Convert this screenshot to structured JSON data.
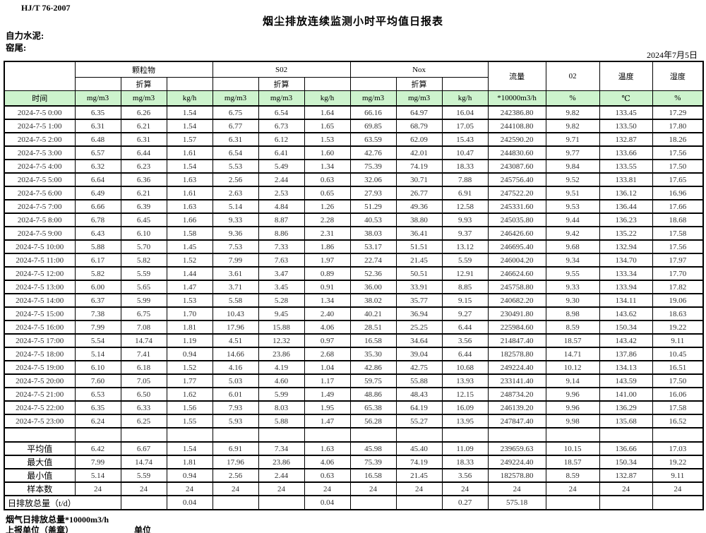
{
  "meta": {
    "standard": "HJ/T 76-2007",
    "title": "烟尘排放连续监测小时平均值日报表",
    "company": "自力水泥:",
    "site": "窑尾:",
    "date": "2024年7月5日"
  },
  "table": {
    "groups": [
      "颗粒物",
      "S02",
      "Nox"
    ],
    "converted_label": "折算",
    "flow_label": "流量",
    "o2_label": "02",
    "temp_label": "温度",
    "humidity_label": "湿度",
    "units": [
      "时间",
      "mg/m3",
      "mg/m3",
      "kg/h",
      "mg/m3",
      "mg/m3",
      "kg/h",
      "mg/m3",
      "mg/m3",
      "kg/h",
      "*10000m3/h",
      "%",
      "℃",
      "%"
    ],
    "rows": [
      {
        "time": "2024-7-5 0:00",
        "v": [
          "6.35",
          "6.26",
          "1.54",
          "6.75",
          "6.54",
          "1.64",
          "66.16",
          "64.97",
          "16.04",
          "242386.80",
          "9.82",
          "133.45",
          "17.29"
        ]
      },
      {
        "time": "2024-7-5 1:00",
        "v": [
          "6.31",
          "6.21",
          "1.54",
          "6.77",
          "6.73",
          "1.65",
          "69.85",
          "68.79",
          "17.05",
          "244108.80",
          "9.82",
          "133.50",
          "17.80"
        ]
      },
      {
        "time": "2024-7-5 2:00",
        "v": [
          "6.48",
          "6.31",
          "1.57",
          "6.31",
          "6.12",
          "1.53",
          "63.59",
          "62.09",
          "15.43",
          "242590.20",
          "9.71",
          "132.87",
          "18.26"
        ]
      },
      {
        "time": "2024-7-5 3:00",
        "v": [
          "6.57",
          "6.44",
          "1.61",
          "6.54",
          "6.41",
          "1.60",
          "42.76",
          "42.01",
          "10.47",
          "244830.60",
          "9.77",
          "133.66",
          "17.56"
        ]
      },
      {
        "time": "2024-7-5 4:00",
        "v": [
          "6.32",
          "6.23",
          "1.54",
          "5.53",
          "5.49",
          "1.34",
          "75.39",
          "74.19",
          "18.33",
          "243087.60",
          "9.84",
          "133.55",
          "17.50"
        ]
      },
      {
        "time": "2024-7-5 5:00",
        "v": [
          "6.64",
          "6.36",
          "1.63",
          "2.56",
          "2.44",
          "0.63",
          "32.06",
          "30.71",
          "7.88",
          "245756.40",
          "9.52",
          "133.81",
          "17.65"
        ]
      },
      {
        "time": "2024-7-5 6:00",
        "v": [
          "6.49",
          "6.21",
          "1.61",
          "2.63",
          "2.53",
          "0.65",
          "27.93",
          "26.77",
          "6.91",
          "247522.20",
          "9.51",
          "136.12",
          "16.96"
        ]
      },
      {
        "time": "2024-7-5 7:00",
        "v": [
          "6.66",
          "6.39",
          "1.63",
          "5.14",
          "4.84",
          "1.26",
          "51.29",
          "49.36",
          "12.58",
          "245331.60",
          "9.53",
          "136.44",
          "17.66"
        ]
      },
      {
        "time": "2024-7-5 8:00",
        "v": [
          "6.78",
          "6.45",
          "1.66",
          "9.33",
          "8.87",
          "2.28",
          "40.53",
          "38.80",
          "9.93",
          "245035.80",
          "9.44",
          "136.23",
          "18.68"
        ]
      },
      {
        "time": "2024-7-5 9:00",
        "v": [
          "6.43",
          "6.10",
          "1.58",
          "9.36",
          "8.86",
          "2.31",
          "38.03",
          "36.41",
          "9.37",
          "246426.60",
          "9.42",
          "135.22",
          "17.58"
        ]
      },
      {
        "time": "2024-7-5 10:00",
        "v": [
          "5.88",
          "5.70",
          "1.45",
          "7.53",
          "7.33",
          "1.86",
          "53.17",
          "51.51",
          "13.12",
          "246695.40",
          "9.68",
          "132.94",
          "17.56"
        ]
      },
      {
        "time": "2024-7-5 11:00",
        "v": [
          "6.17",
          "5.82",
          "1.52",
          "7.99",
          "7.63",
          "1.97",
          "22.74",
          "21.45",
          "5.59",
          "246004.20",
          "9.34",
          "134.70",
          "17.97"
        ]
      },
      {
        "time": "2024-7-5 12:00",
        "v": [
          "5.82",
          "5.59",
          "1.44",
          "3.61",
          "3.47",
          "0.89",
          "52.36",
          "50.51",
          "12.91",
          "246624.60",
          "9.55",
          "133.34",
          "17.70"
        ]
      },
      {
        "time": "2024-7-5 13:00",
        "v": [
          "6.00",
          "5.65",
          "1.47",
          "3.71",
          "3.45",
          "0.91",
          "36.00",
          "33.91",
          "8.85",
          "245758.80",
          "9.33",
          "133.94",
          "17.82"
        ]
      },
      {
        "time": "2024-7-5 14:00",
        "v": [
          "6.37",
          "5.99",
          "1.53",
          "5.58",
          "5.28",
          "1.34",
          "38.02",
          "35.77",
          "9.15",
          "240682.20",
          "9.30",
          "134.11",
          "19.06"
        ]
      },
      {
        "time": "2024-7-5 15:00",
        "v": [
          "7.38",
          "6.75",
          "1.70",
          "10.43",
          "9.45",
          "2.40",
          "40.21",
          "36.94",
          "9.27",
          "230491.80",
          "8.98",
          "143.62",
          "18.63"
        ]
      },
      {
        "time": "2024-7-5 16:00",
        "v": [
          "7.99",
          "7.08",
          "1.81",
          "17.96",
          "15.88",
          "4.06",
          "28.51",
          "25.25",
          "6.44",
          "225984.60",
          "8.59",
          "150.34",
          "19.22"
        ]
      },
      {
        "time": "2024-7-5 17:00",
        "v": [
          "5.54",
          "14.74",
          "1.19",
          "4.51",
          "12.32",
          "0.97",
          "16.58",
          "34.64",
          "3.56",
          "214847.40",
          "18.57",
          "143.42",
          "9.11"
        ]
      },
      {
        "time": "2024-7-5 18:00",
        "v": [
          "5.14",
          "7.41",
          "0.94",
          "14.66",
          "23.86",
          "2.68",
          "35.30",
          "39.04",
          "6.44",
          "182578.80",
          "14.71",
          "137.86",
          "10.45"
        ]
      },
      {
        "time": "2024-7-5 19:00",
        "v": [
          "6.10",
          "6.18",
          "1.52",
          "4.16",
          "4.19",
          "1.04",
          "42.86",
          "42.75",
          "10.68",
          "249224.40",
          "10.12",
          "134.13",
          "16.51"
        ]
      },
      {
        "time": "2024-7-5 20:00",
        "v": [
          "7.60",
          "7.05",
          "1.77",
          "5.03",
          "4.60",
          "1.17",
          "59.75",
          "55.88",
          "13.93",
          "233141.40",
          "9.14",
          "143.59",
          "17.50"
        ]
      },
      {
        "time": "2024-7-5 21:00",
        "v": [
          "6.53",
          "6.50",
          "1.62",
          "6.01",
          "5.99",
          "1.49",
          "48.86",
          "48.43",
          "12.15",
          "248734.20",
          "9.96",
          "141.00",
          "16.06"
        ]
      },
      {
        "time": "2024-7-5 22:00",
        "v": [
          "6.35",
          "6.33",
          "1.56",
          "7.93",
          "8.03",
          "1.95",
          "65.38",
          "64.19",
          "16.09",
          "246139.20",
          "9.96",
          "136.29",
          "17.58"
        ]
      },
      {
        "time": "2024-7-5 23:00",
        "v": [
          "6.24",
          "6.25",
          "1.55",
          "5.93",
          "5.88",
          "1.47",
          "56.28",
          "55.27",
          "13.95",
          "247847.40",
          "9.98",
          "135.68",
          "16.52"
        ]
      }
    ],
    "summary": [
      {
        "label": "平均值",
        "v": [
          "6.42",
          "6.67",
          "1.54",
          "6.91",
          "7.34",
          "1.63",
          "45.98",
          "45.40",
          "11.09",
          "239659.63",
          "10.15",
          "136.66",
          "17.03"
        ]
      },
      {
        "label": "最大值",
        "v": [
          "7.99",
          "14.74",
          "1.81",
          "17.96",
          "23.86",
          "4.06",
          "75.39",
          "74.19",
          "18.33",
          "249224.40",
          "18.57",
          "150.34",
          "19.22"
        ]
      },
      {
        "label": "最小值",
        "v": [
          "5.14",
          "5.59",
          "0.94",
          "2.56",
          "2.44",
          "0.63",
          "16.58",
          "21.45",
          "3.56",
          "182578.80",
          "8.59",
          "132.87",
          "9.11"
        ]
      },
      {
        "label": "样本数",
        "v": [
          "24",
          "24",
          "24",
          "24",
          "24",
          "24",
          "24",
          "24",
          "24",
          "24",
          "24",
          "24",
          "24"
        ]
      }
    ],
    "total_row": {
      "label": "日排放总量（t/d）",
      "v": [
        "",
        "0.04",
        "",
        "",
        "0.04",
        "",
        "",
        "0.27",
        "575.18",
        "",
        "",
        ""
      ]
    },
    "colors": {
      "header_green": "#cdf3cd",
      "border": "#000000"
    }
  },
  "footer": {
    "line1": "烟气日排放总量*10000m3/h",
    "line2": "上报单位（盖章）",
    "line3": "单位"
  }
}
